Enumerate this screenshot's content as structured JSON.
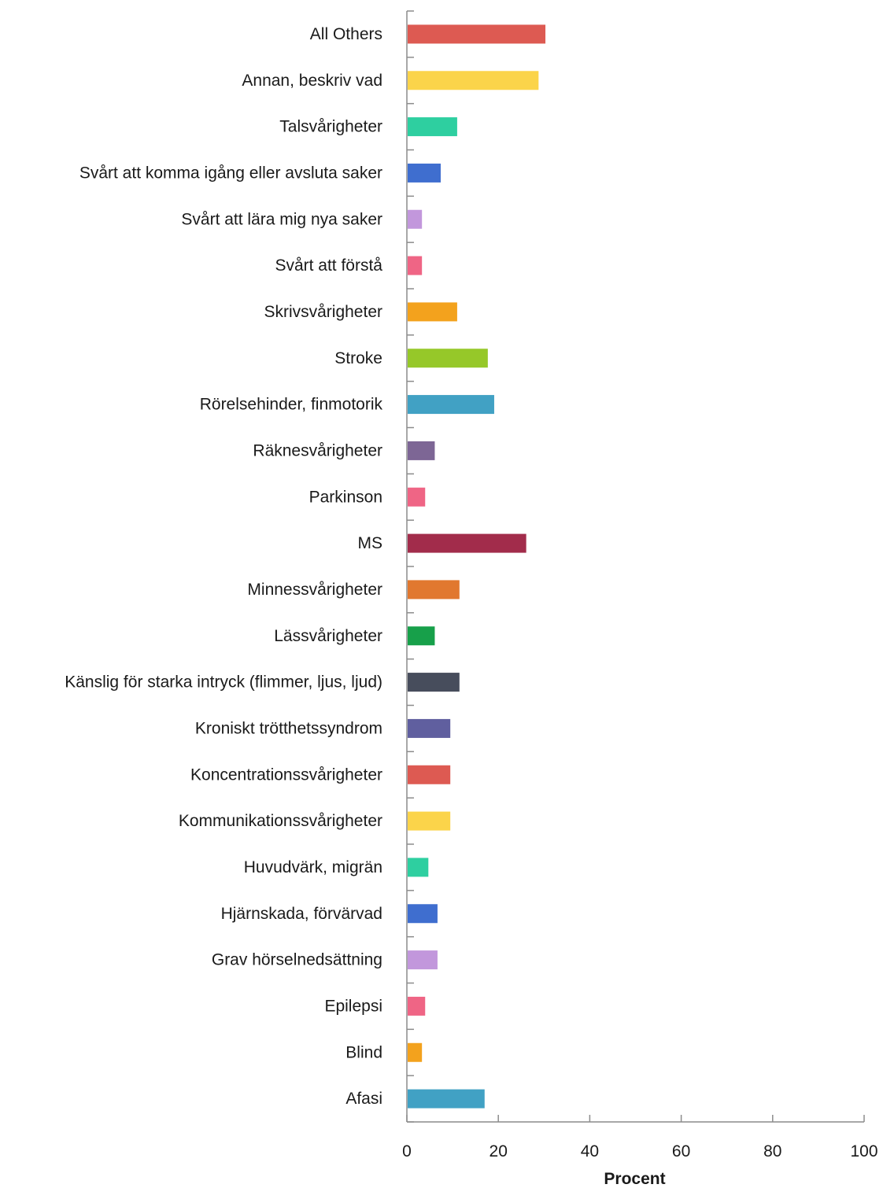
{
  "chart_data": {
    "type": "bar",
    "orientation": "horizontal",
    "categories": [
      "All Others",
      "Annan, beskriv vad",
      "Talsvårigheter",
      "Svårt att komma igång eller avsluta saker",
      "Svårt att lära mig nya saker",
      "Svårt att förstå",
      "Skrivsvårigheter",
      "Stroke",
      "Rörelsehinder, finmotorik",
      "Räknesvårigheter",
      "Parkinson",
      "MS",
      "Minnessvårigheter",
      "Lässvårigheter",
      "Känslig för starka intryck (flimmer, ljus, ljud)",
      "Kroniskt trötthetssyndrom",
      "Koncentrationssvårigheter",
      "Kommunikationssvårigheter",
      "Huvudvärk, migrän",
      "Hjärnskada, förvärvad",
      "Grav hörselnedsättning",
      "Epilepsi",
      "Blind",
      "Afasi"
    ],
    "values": [
      30.3,
      28.8,
      11.0,
      7.4,
      3.3,
      3.3,
      11.0,
      17.7,
      19.1,
      6.1,
      4.0,
      26.1,
      11.5,
      6.1,
      11.5,
      9.5,
      9.5,
      9.5,
      4.7,
      6.7,
      6.7,
      4.0,
      3.3,
      17.0
    ],
    "colors": [
      "#dd5a52",
      "#fbd44a",
      "#2ecfa0",
      "#3f6ecf",
      "#c297dc",
      "#ef6585",
      "#f3a21d",
      "#96c829",
      "#41a1c4",
      "#7d6695",
      "#ef6585",
      "#a22c4b",
      "#e1782f",
      "#17a04a",
      "#474d5c",
      "#605f9f",
      "#dd5a52",
      "#fbd44a",
      "#2ecfa0",
      "#3f6ecf",
      "#c297dc",
      "#ef6585",
      "#f3a21d",
      "#41a1c4"
    ],
    "xlabel": "Procent",
    "xlim": [
      0,
      100
    ],
    "xticks": [
      0,
      20,
      40,
      60,
      80,
      100
    ],
    "grid": false,
    "legend": "none"
  }
}
